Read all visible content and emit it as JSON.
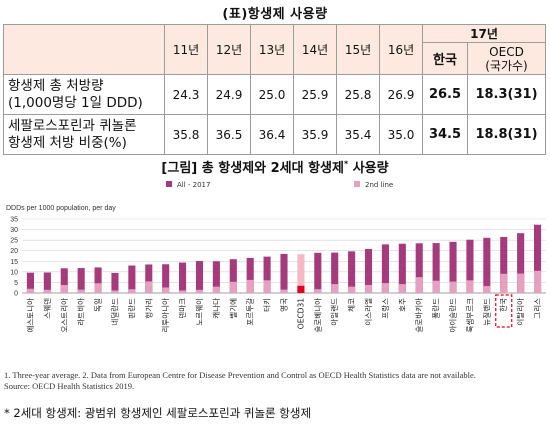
{
  "table": {
    "title": "(표)항생제 사용량",
    "year_group": "17년",
    "years": [
      "11년",
      "12년",
      "13년",
      "14년",
      "15년",
      "16년"
    ],
    "korea_label": "한국",
    "oecd_label": "OECD",
    "oecd_sublabel": "(국가수)",
    "rows": [
      {
        "label_line1": "항생제 총 처방량",
        "label_line2": "(1,000명당 1일 DDD)",
        "values": [
          "24.3",
          "24.9",
          "25.0",
          "25.9",
          "25.8",
          "26.9"
        ],
        "korea": "26.5",
        "oecd": "18.3(31)"
      },
      {
        "label_line1": "세팔로스포린과 퀴놀론",
        "label_line2": "항생제 처방 비중(%)",
        "values": [
          "35.8",
          "36.5",
          "36.4",
          "35.9",
          "35.4",
          "35.0"
        ],
        "korea": "34.5",
        "oecd": "18.8(31)"
      }
    ]
  },
  "figure_title": "[그림] 총 항생제와 2세대 항생제",
  "figure_title_mark": "*",
  "figure_title_suffix": " 사용량",
  "note1": "1. Three-year average. 2. Data from European Centre for Disease Prevention and Control as OECD Health Statistics data are not available.",
  "note2": "Source: OECD Health Statistics 2019.",
  "footnote": "* 2세대 항생제: 광범위 항생제인 세팔로스포린과 퀴놀론 항생제",
  "colors": {
    "all": "#a53a7d",
    "second": "#e6a1c1",
    "oecd_all": "#f4b9c3",
    "oecd_second": "#e3001b",
    "grid": "#d4d4d4",
    "highlight_box": "#e3001b"
  },
  "chart_data": {
    "type": "bar",
    "ylabel": "DDDs per 1000 population, per day",
    "ylim": [
      0,
      35
    ],
    "yticks": [
      0,
      5,
      10,
      15,
      20,
      25,
      30,
      35
    ],
    "grid": true,
    "legend_position": "top",
    "categories": [
      "에스토니아",
      "스웨덴",
      "오스트리아",
      "라트비아",
      "독일",
      "네덜란드",
      "핀란드",
      "헝가리",
      "리투아니아",
      "덴마크",
      "노르웨이",
      "캐나다",
      "벨기에",
      "포르투갈",
      "터키",
      "영국",
      "OECD31",
      "슬로베니아",
      "아일랜드",
      "체코",
      "이스라엘",
      "프랑스",
      "호주",
      "슬로바키아",
      "폴란드",
      "아이슬란드",
      "룩셈부르크",
      "뉴질랜드",
      "한국",
      "이탈리아",
      "그리스"
    ],
    "series": [
      {
        "name": "All - 2017",
        "values": [
          9.6,
          9.7,
          11.7,
          11.8,
          12.1,
          9.5,
          13.0,
          13.5,
          13.6,
          14.4,
          15.1,
          15.0,
          16.0,
          16.6,
          17.2,
          18.5,
          18.3,
          19.0,
          19.1,
          19.7,
          20.8,
          23.0,
          23.3,
          23.5,
          23.6,
          24.2,
          25.2,
          26.1,
          26.5,
          28.3,
          32.3
        ]
      },
      {
        "name": "2nd line",
        "values": [
          2.0,
          1.5,
          3.8,
          1.6,
          4.6,
          1.2,
          1.8,
          5.5,
          2.6,
          1.2,
          1.5,
          3.0,
          5.3,
          6.2,
          6.0,
          1.6,
          3.4,
          1.8,
          4.2,
          3.0,
          3.8,
          4.7,
          4.2,
          7.5,
          5.8,
          5.4,
          6.0,
          3.3,
          9.1,
          9.2,
          10.5
        ]
      }
    ],
    "highlight": [
      "OECD31",
      "한국"
    ],
    "highlight_box": "한국"
  }
}
